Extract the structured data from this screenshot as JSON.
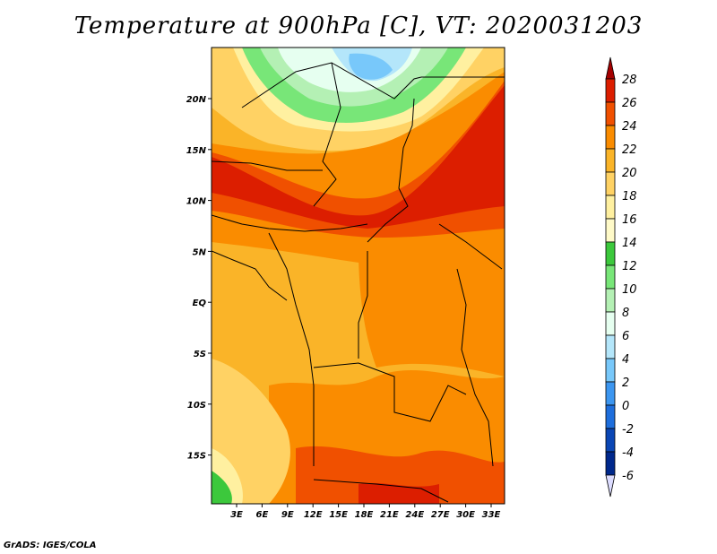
{
  "title": "Temperature at 900hPa [C], VT: 2020031203",
  "credit": "GrADS: IGES/COLA",
  "map": {
    "lat_labels": [
      "20N",
      "15N",
      "10N",
      "5N",
      "EQ",
      "5S",
      "10S",
      "15S"
    ],
    "lon_labels": [
      "3E",
      "6E",
      "9E",
      "12E",
      "15E",
      "18E",
      "21E",
      "24E",
      "27E",
      "30E",
      "33E"
    ]
  },
  "colorbar": {
    "labels": [
      "28",
      "26",
      "24",
      "22",
      "20",
      "18",
      "16",
      "14",
      "12",
      "10",
      "8",
      "6",
      "4",
      "2",
      "0",
      "-2",
      "-4",
      "-6"
    ],
    "colors": [
      "#a50000",
      "#dc1e00",
      "#f05000",
      "#fa8c00",
      "#fab428",
      "#ffd264",
      "#fff0a0",
      "#fffac8",
      "#3cc83c",
      "#78e678",
      "#b4f0b4",
      "#e6fff0",
      "#b4e6fa",
      "#78c8fa",
      "#3c96f0",
      "#1e6edc",
      "#0a46b4",
      "#00288c",
      "#000064",
      "#dcdcff"
    ]
  }
}
